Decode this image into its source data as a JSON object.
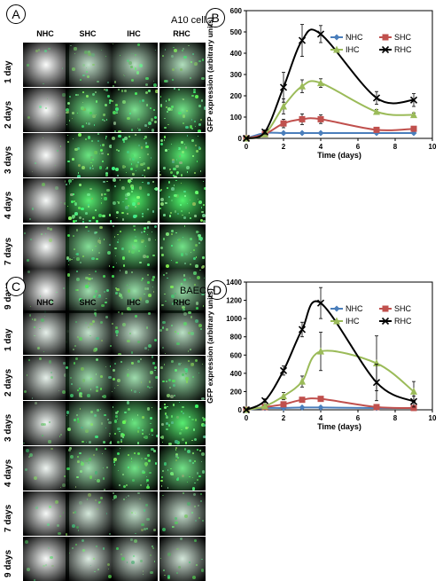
{
  "panels": [
    {
      "letter": "A",
      "title": "A10 cells",
      "columns": [
        "NHC",
        "SHC",
        "IHC",
        "RHC"
      ],
      "rows": [
        "1 day",
        "2 days",
        "3 days",
        "4 days",
        "7 days",
        "9 days"
      ],
      "intensity": [
        [
          0.02,
          0.35,
          0.4,
          0.45
        ],
        [
          0.03,
          0.8,
          0.75,
          0.8
        ],
        [
          0.03,
          0.85,
          0.9,
          0.95
        ],
        [
          0.05,
          0.95,
          1.0,
          1.0
        ],
        [
          0.04,
          0.7,
          0.85,
          0.8
        ],
        [
          0.03,
          0.55,
          0.6,
          0.6
        ]
      ]
    },
    {
      "letter": "C",
      "title": "BAEC",
      "columns": [
        "NHC",
        "SHC",
        "IHC",
        "RHC"
      ],
      "rows": [
        "1 day",
        "2 days",
        "3 days",
        "4 days",
        "7 days",
        "9 days"
      ],
      "intensity": [
        [
          0.15,
          0.35,
          0.35,
          0.4
        ],
        [
          0.15,
          0.55,
          0.55,
          0.6
        ],
        [
          0.1,
          0.6,
          0.85,
          0.95
        ],
        [
          0.1,
          0.55,
          0.8,
          0.8
        ],
        [
          0.05,
          0.25,
          0.35,
          0.3
        ],
        [
          0.05,
          0.2,
          0.25,
          0.25
        ]
      ]
    }
  ],
  "chart_data": [
    {
      "letter": "B",
      "type": "line",
      "xlabel": "Time (days)",
      "ylabel": "GFP expression (arbitrary units)",
      "xlim": [
        0,
        10
      ],
      "ylim": [
        0,
        600
      ],
      "xticks": [
        0,
        2,
        4,
        6,
        8,
        10
      ],
      "yticks": [
        0,
        100,
        200,
        300,
        400,
        500,
        600
      ],
      "x": [
        0,
        1,
        2,
        3,
        4,
        7,
        9
      ],
      "legend_position": "top-right",
      "series": [
        {
          "name": "NHC",
          "color": "#4a7ebb",
          "marker": "diamond",
          "values": [
            0,
            25,
            25,
            25,
            25,
            25,
            25
          ],
          "err": [
            0,
            3,
            3,
            3,
            3,
            3,
            3
          ]
        },
        {
          "name": "SHC",
          "color": "#c0504d",
          "marker": "square",
          "values": [
            0,
            20,
            70,
            90,
            90,
            40,
            45
          ],
          "err": [
            0,
            5,
            20,
            25,
            20,
            8,
            8
          ]
        },
        {
          "name": "IHC",
          "color": "#9bbb59",
          "marker": "triangle",
          "values": [
            0,
            20,
            150,
            245,
            260,
            125,
            110
          ],
          "err": [
            0,
            5,
            35,
            30,
            20,
            10,
            10
          ]
        },
        {
          "name": "RHC",
          "color": "#000000",
          "marker": "x",
          "values": [
            0,
            30,
            240,
            460,
            490,
            190,
            180
          ],
          "err": [
            0,
            10,
            70,
            75,
            40,
            30,
            30
          ]
        }
      ]
    },
    {
      "letter": "D",
      "type": "line",
      "xlabel": "Time (days)",
      "ylabel": "GFP expression (arbitrary units)",
      "xlim": [
        0,
        10
      ],
      "ylim": [
        0,
        1400
      ],
      "xticks": [
        0,
        2,
        4,
        6,
        8,
        10
      ],
      "yticks": [
        0,
        200,
        400,
        600,
        800,
        1000,
        1200,
        1400
      ],
      "x": [
        0,
        1,
        2,
        3,
        4,
        7,
        9
      ],
      "legend_position": "top-right",
      "series": [
        {
          "name": "NHC",
          "color": "#4a7ebb",
          "marker": "diamond",
          "values": [
            0,
            20,
            20,
            25,
            25,
            20,
            20
          ],
          "err": [
            0,
            3,
            3,
            3,
            3,
            3,
            3
          ]
        },
        {
          "name": "SHC",
          "color": "#c0504d",
          "marker": "square",
          "values": [
            0,
            30,
            60,
            110,
            120,
            30,
            20
          ],
          "err": [
            0,
            10,
            15,
            25,
            20,
            8,
            8
          ]
        },
        {
          "name": "IHC",
          "color": "#9bbb59",
          "marker": "triangle",
          "values": [
            0,
            40,
            150,
            310,
            640,
            510,
            200
          ],
          "err": [
            0,
            10,
            40,
            60,
            210,
            300,
            110
          ]
        },
        {
          "name": "RHC",
          "color": "#000000",
          "marker": "x",
          "values": [
            0,
            100,
            430,
            880,
            1170,
            300,
            90
          ],
          "err": [
            0,
            20,
            50,
            80,
            170,
            200,
            60
          ]
        }
      ]
    }
  ]
}
